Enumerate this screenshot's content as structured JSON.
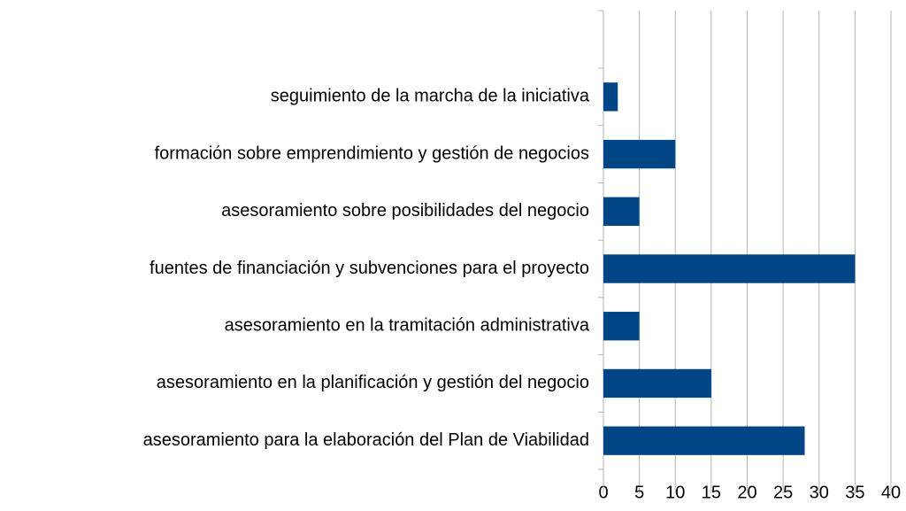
{
  "chart_data": {
    "type": "bar",
    "orientation": "horizontal",
    "categories": [
      "seguimiento de la marcha de la iniciativa",
      "formación sobre emprendimiento y gestión de negocios",
      "asesoramiento sobre posibilidades del negocio",
      "fuentes de financiación y subvenciones para el proyecto",
      "asesoramiento en la tramitación administrativa",
      "asesoramiento en la planificación y gestión del negocio",
      "asesoramiento para la elaboración del Plan de Viabilidad"
    ],
    "values": [
      2,
      10,
      5,
      35,
      5,
      15,
      28
    ],
    "color": "#004586",
    "xlim": [
      0,
      40
    ],
    "xticks": [
      0,
      5,
      10,
      15,
      20,
      25,
      30,
      35,
      40
    ],
    "grid": true
  }
}
